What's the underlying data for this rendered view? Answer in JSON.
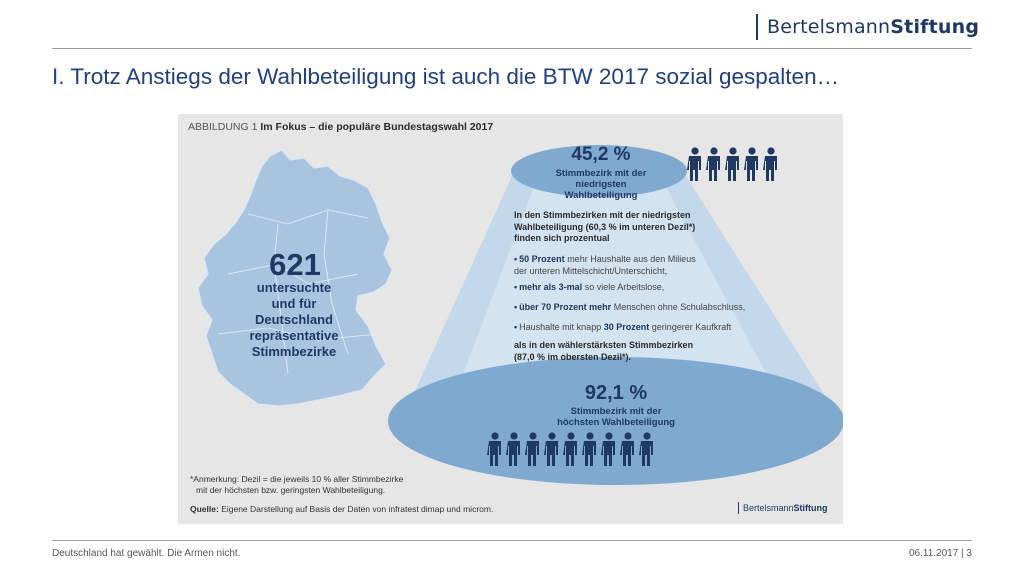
{
  "header": {
    "logo_part1": "Bertelsmann",
    "logo_part2": "Stiftung",
    "title": "I. Trotz Anstiegs der Wahlbeteiligung ist auch die BTW 2017 sozial gespalten…"
  },
  "figure": {
    "caption_prefix": "ABBILDUNG 1",
    "caption_title": "Im Fokus – die populäre Bundestagswahl 2017",
    "map_number": "621",
    "map_text": [
      "untersuchte",
      "und für",
      "Deutschland",
      "repräsentative",
      "Stimmbezirke"
    ],
    "top_percent": "45,2 %",
    "top_label_1": "Stimmbezirk mit der",
    "top_label_2": "niedrigsten Wahlbeteiligung",
    "top_figure_count": 5,
    "intro_1": "In den Stimmbezirken mit der niedrigsten",
    "intro_2": "Wahlbeteiligung (60,3 % im unteren Dezil*)",
    "intro_3": "finden sich prozentual",
    "bullet_1_bold": "50 Prozent",
    "bullet_1_rest": "mehr Haushalte aus den Milieus",
    "bullet_1_line2": "der unteren Mittelschicht/Unterschicht,",
    "bullet_2_bold": "mehr als 3-mal",
    "bullet_2_rest": "so viele Arbeitslose,",
    "bullet_3_bold": "über 70 Prozent mehr",
    "bullet_3_rest": "Menschen ohne Schulabschluss,",
    "bullet_4_pre": "Haushalte mit knapp",
    "bullet_4_bold": "30 Prozent",
    "bullet_4_rest": "geringerer Kaufkraft",
    "outro_1": "als in den wählerstärksten Stimmbezirken",
    "outro_2": "(87,0 % im obersten Dezil*).",
    "bottom_percent": "92,1 %",
    "bottom_label_1": "Stimmbezirk mit der",
    "bottom_label_2": "höchsten Wahlbeteiligung",
    "bottom_figure_count": 9,
    "note_1": "*Anmerkung: Dezil = die jeweils 10 % aller Stimmbezirke",
    "note_2": "mit der höchsten bzw. geringsten Wahlbeteiligung.",
    "source_label": "Quelle:",
    "source_text": "Eigene Darstellung auf Basis der Daten von infratest dimap und microm.",
    "mini_logo_1": "Bertelsmann",
    "mini_logo_2": "Stiftung"
  },
  "footer": {
    "left": "Deutschland hat gewählt. Die Armen nicht.",
    "right": "06.11.2017 | 3"
  },
  "colors": {
    "navy": "#1f3864",
    "title_blue": "#1f3f86",
    "ellipse": "#7fa9cf",
    "map": "#a9c4df"
  }
}
